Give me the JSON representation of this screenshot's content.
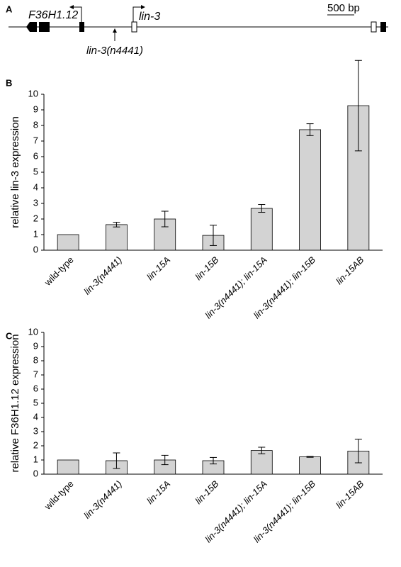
{
  "gene_diagram": {
    "label": "A",
    "genes": [
      "F36H1.12",
      "lin-3"
    ],
    "allele": "lin-3(n4441)",
    "scale": "500 bp"
  },
  "chart_data": [
    {
      "type": "bar",
      "label": "B",
      "ylabel": "relative lin-3 expression",
      "categories": [
        "wild-type",
        "lin-3(n4441)",
        "lin-15A",
        "lin-15B",
        "lin-3(n4441); lin-15A",
        "lin-3(n4441); lin-15B",
        "lin-15AB"
      ],
      "values": [
        1.0,
        1.64,
        2.0,
        0.95,
        2.68,
        7.73,
        9.27
      ],
      "errors": [
        null,
        0.15,
        0.5,
        0.65,
        0.25,
        0.38,
        2.9
      ],
      "color": "#d3d3d3",
      "ylim": [
        0,
        10
      ],
      "yticks": [
        0,
        1,
        2,
        3,
        4,
        5,
        6,
        7,
        8,
        9,
        10
      ]
    },
    {
      "type": "bar",
      "label": "C",
      "ylabel": "relative F36H1.12 expression",
      "categories": [
        "wild-type",
        "lin-3(n4441)",
        "lin-15A",
        "lin-15B",
        "lin-3(n4441); lin-15A",
        "lin-3(n4441); lin-15B",
        "lin-15AB"
      ],
      "values": [
        1.0,
        0.95,
        1.0,
        0.95,
        1.67,
        1.22,
        1.63
      ],
      "errors": [
        null,
        0.55,
        0.33,
        0.23,
        0.23,
        0.03,
        0.83
      ],
      "color": "#d3d3d3",
      "ylim": [
        0,
        10
      ],
      "yticks": [
        0,
        1,
        2,
        3,
        4,
        5,
        6,
        7,
        8,
        9,
        10
      ]
    }
  ]
}
